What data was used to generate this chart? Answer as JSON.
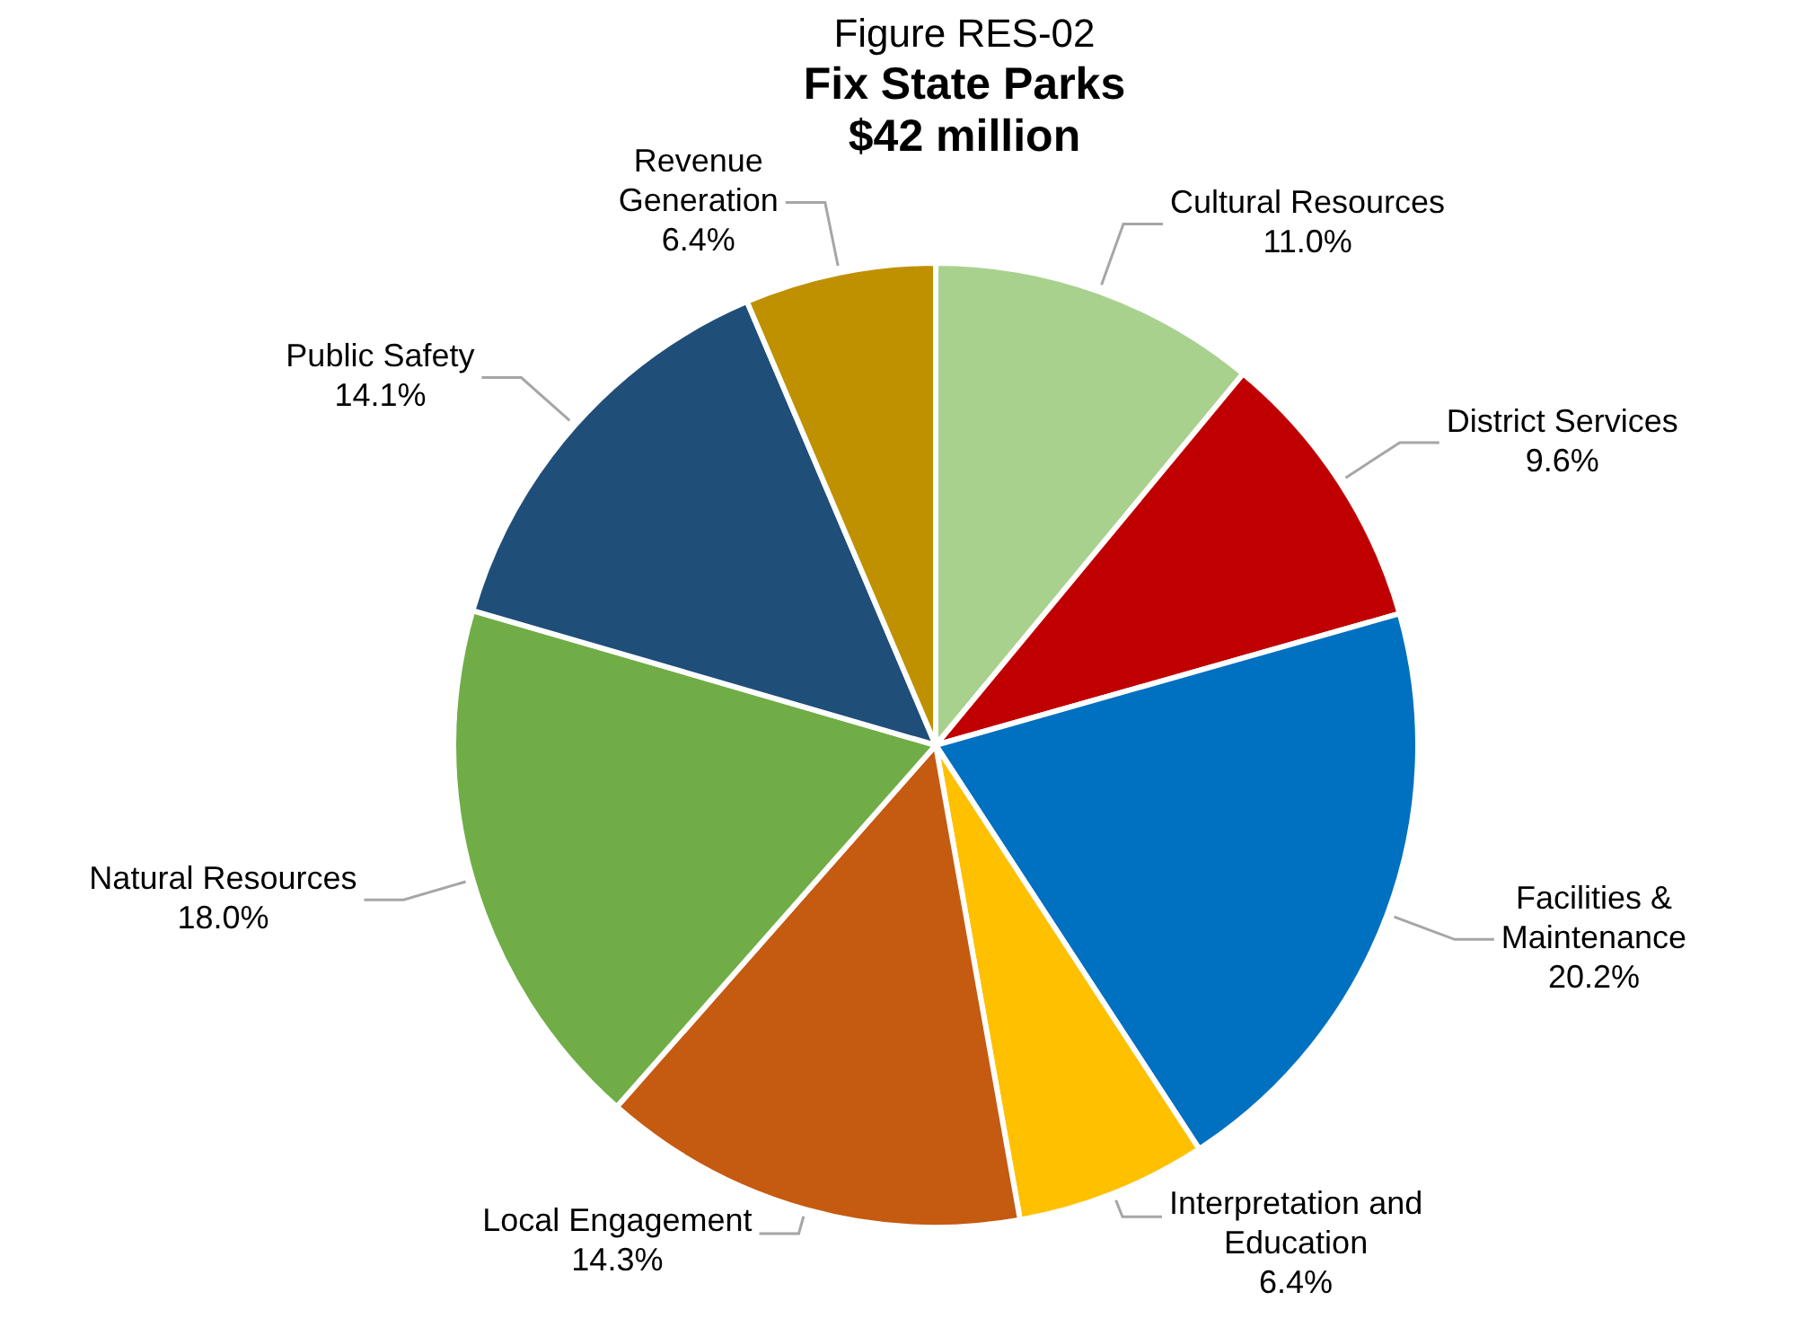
{
  "chart_data": {
    "type": "pie",
    "title": "Fix State Parks",
    "subtitle": "$42 million",
    "annotations": [
      "Figure RES-02"
    ],
    "categories": [
      "Cultural Resources",
      "District Services",
      "Facilities &\nMaintenance",
      "Interpretation and\nEducation",
      "Local Engagement",
      "Natural Resources",
      "Public Safety",
      "Revenue\nGeneration"
    ],
    "values": [
      11.0,
      9.6,
      20.2,
      6.4,
      14.3,
      18.0,
      14.1,
      6.4
    ],
    "value_labels": [
      "11.0%",
      "9.6%",
      "20.2%",
      "6.4%",
      "14.3%",
      "18.0%",
      "14.1%",
      "6.4%"
    ],
    "colors": [
      "#a9d18e",
      "#c00000",
      "#0070c0",
      "#ffc000",
      "#c55a11",
      "#70ad47",
      "#1f4e79",
      "#bf9000"
    ],
    "legend": false
  }
}
